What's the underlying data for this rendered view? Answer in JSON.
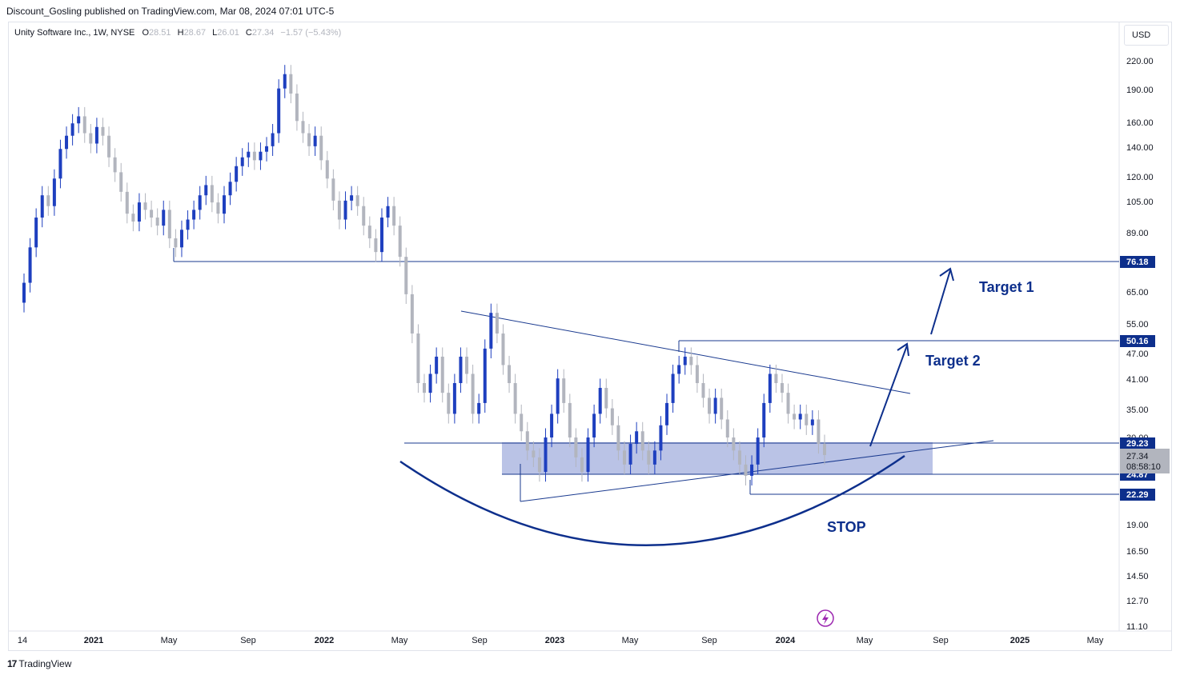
{
  "header": {
    "published_line": "Discount_Gosling published on TradingView.com, Mar 08, 2024 07:01 UTC-5"
  },
  "legend": {
    "title": "Unity Software Inc., 1W, NYSE",
    "o_key": "O",
    "o_val": "28.51",
    "h_key": "H",
    "h_val": "28.67",
    "l_key": "L",
    "l_val": "26.01",
    "c_key": "C",
    "c_val": "27.34",
    "change": "−1.57 (−5.43%)"
  },
  "currency": "USD",
  "footer": {
    "logo": "17",
    "brand": "TradingView"
  },
  "colors": {
    "up": "#1e3fbf",
    "down": "#b2b5be",
    "annotation": "#0d2f8c",
    "zone": "#8c9bd6"
  },
  "chart_data": {
    "type": "candlestick",
    "title": "Unity Software Inc., 1W, NYSE",
    "y_scale": "log",
    "ylim": [
      11.1,
      235
    ],
    "x_tick_labels": [
      "14",
      "2021",
      "May",
      "Sep",
      "2022",
      "May",
      "Sep",
      "2023",
      "May",
      "Sep",
      "2024",
      "May",
      "Sep",
      "2025",
      "May"
    ],
    "y_tick_labels": [
      "220.00",
      "190.00",
      "160.00",
      "140.00",
      "120.00",
      "105.00",
      "89.00",
      "65.00",
      "55.00",
      "47.00",
      "41.00",
      "35.00",
      "30.00",
      "19.00",
      "16.50",
      "14.50",
      "12.70",
      "11.10"
    ],
    "series_close": [
      68,
      82,
      96,
      108,
      102,
      118,
      138,
      148,
      158,
      164,
      150,
      142,
      155,
      148,
      132,
      122,
      110,
      98,
      94,
      104,
      100,
      96,
      92,
      100,
      86,
      82,
      90,
      95,
      100,
      108,
      114,
      104,
      98,
      108,
      116,
      126,
      132,
      136,
      130,
      136,
      140,
      150,
      190,
      205,
      185,
      160,
      150,
      140,
      148,
      130,
      118,
      105,
      95,
      105,
      108,
      102,
      92,
      86,
      80,
      96,
      102,
      92,
      78,
      64,
      52,
      40,
      38,
      42,
      46,
      38,
      34,
      40,
      46,
      42,
      34,
      36,
      48,
      58,
      52,
      44,
      40,
      34,
      31,
      28,
      27,
      25,
      30,
      34,
      41,
      36,
      30,
      27,
      25,
      30,
      34,
      39,
      35,
      32,
      28,
      26,
      29,
      31,
      28,
      26,
      28,
      32,
      36,
      42,
      44,
      46,
      44,
      40,
      37,
      34,
      37,
      33,
      30,
      28,
      26,
      24.5,
      26,
      30,
      36,
      42,
      40,
      38,
      34,
      33,
      34,
      32,
      33,
      29,
      27.34
    ],
    "price_labels": [
      "76.18",
      "50.16",
      "29.23",
      "24.87",
      "22.29"
    ],
    "last_price": {
      "value": "27.34",
      "countdown": "08:58:10"
    },
    "annotations": [
      "Target 2",
      "Target 1",
      "STOP"
    ]
  }
}
